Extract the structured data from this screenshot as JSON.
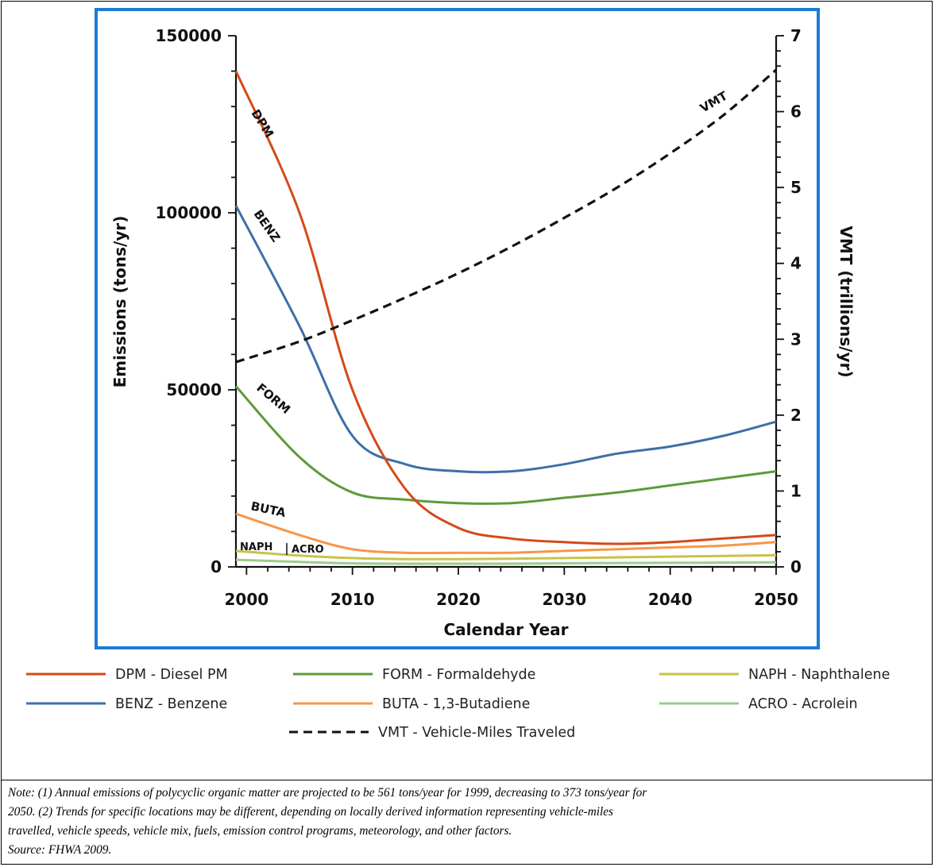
{
  "chart_data": {
    "type": "line",
    "xlabel": "Calendar Year",
    "ylabel": "Emissions (tons/yr)",
    "y2label": "VMT (trillions/yr)",
    "xlim": [
      1999,
      2050
    ],
    "ylim": [
      0,
      150000
    ],
    "y2lim": [
      0,
      7
    ],
    "x_ticks": [
      "2000",
      "2010",
      "2020",
      "2030",
      "2040",
      "2050"
    ],
    "y_ticks": [
      "0",
      "50000",
      "100000",
      "150000"
    ],
    "y2_ticks": [
      "0",
      "1",
      "2",
      "3",
      "4",
      "5",
      "6",
      "7"
    ],
    "grid": false,
    "legend_position": "bottom",
    "colors": {
      "DPM": "#d44a17",
      "BENZ": "#3d6fa8",
      "FORM": "#5e9a3a",
      "BUTA": "#f79646",
      "NAPH": "#c9c24a",
      "ACRO": "#9ccc8c",
      "VMT": "#111111"
    },
    "series": [
      {
        "name": "DPM",
        "axis": "left",
        "x": [
          1999,
          2005,
          2010,
          2015,
          2020,
          2025,
          2030,
          2035,
          2040,
          2045,
          2050
        ],
        "y": [
          140000,
          100000,
          50000,
          22000,
          11000,
          8000,
          7000,
          6500,
          7000,
          8000,
          9000
        ]
      },
      {
        "name": "BENZ",
        "axis": "left",
        "x": [
          1999,
          2005,
          2010,
          2015,
          2020,
          2025,
          2030,
          2035,
          2040,
          2045,
          2050
        ],
        "y": [
          102000,
          68000,
          37000,
          29000,
          27000,
          27000,
          29000,
          32000,
          34000,
          37000,
          41000
        ]
      },
      {
        "name": "FORM",
        "axis": "left",
        "x": [
          1999,
          2005,
          2010,
          2015,
          2020,
          2025,
          2030,
          2035,
          2040,
          2045,
          2050
        ],
        "y": [
          51000,
          31000,
          21000,
          19000,
          18000,
          18000,
          19500,
          21000,
          23000,
          25000,
          27000
        ]
      },
      {
        "name": "BUTA",
        "axis": "left",
        "x": [
          1999,
          2005,
          2010,
          2015,
          2020,
          2025,
          2030,
          2035,
          2040,
          2045,
          2050
        ],
        "y": [
          15000,
          9000,
          5000,
          4000,
          4000,
          4000,
          4500,
          5000,
          5500,
          6000,
          7000
        ]
      },
      {
        "name": "NAPH",
        "axis": "left",
        "x": [
          1999,
          2005,
          2010,
          2015,
          2020,
          2025,
          2030,
          2035,
          2040,
          2045,
          2050
        ],
        "y": [
          4500,
          3200,
          2500,
          2200,
          2200,
          2300,
          2500,
          2700,
          2900,
          3100,
          3300
        ]
      },
      {
        "name": "ACRO",
        "axis": "left",
        "x": [
          1999,
          2005,
          2010,
          2015,
          2020,
          2025,
          2030,
          2035,
          2040,
          2045,
          2050
        ],
        "y": [
          2000,
          1400,
          1000,
          900,
          900,
          900,
          1000,
          1100,
          1150,
          1200,
          1300
        ]
      },
      {
        "name": "VMT",
        "axis": "right",
        "dashed": true,
        "x": [
          1999,
          2005,
          2010,
          2015,
          2020,
          2025,
          2030,
          2035,
          2040,
          2045,
          2050
        ],
        "y": [
          2.7,
          2.97,
          3.25,
          3.55,
          3.87,
          4.22,
          4.6,
          5.0,
          5.45,
          5.95,
          6.55
        ]
      }
    ],
    "annotations": [
      "DPM",
      "BENZ",
      "FORM",
      "BUTA",
      "NAPH",
      "ACRO",
      "VMT"
    ],
    "legend": [
      {
        "key": "DPM",
        "label": "DPM - Diesel PM"
      },
      {
        "key": "FORM",
        "label": "FORM - Formaldehyde"
      },
      {
        "key": "NAPH",
        "label": "NAPH - Naphthalene"
      },
      {
        "key": "BENZ",
        "label": "BENZ - Benzene"
      },
      {
        "key": "BUTA",
        "label": "BUTA - 1,3-Butadiene"
      },
      {
        "key": "ACRO",
        "label": "ACRO - Acrolein"
      },
      {
        "key": "VMT",
        "label": "VMT - Vehicle-Miles Traveled"
      }
    ]
  },
  "note": {
    "lines": [
      "Note: (1) Annual emissions of polycyclic organic matter are projected to be 561 tons/year for 1999, decreasing to 373 tons/year for",
      "2050. (2) Trends for specific locations may be different, depending on locally derived information representing vehicle-miles",
      "travelled, vehicle speeds, vehicle mix, fuels, emission control programs, meteorology, and other factors.",
      "Source:  FHWA 2009."
    ]
  }
}
